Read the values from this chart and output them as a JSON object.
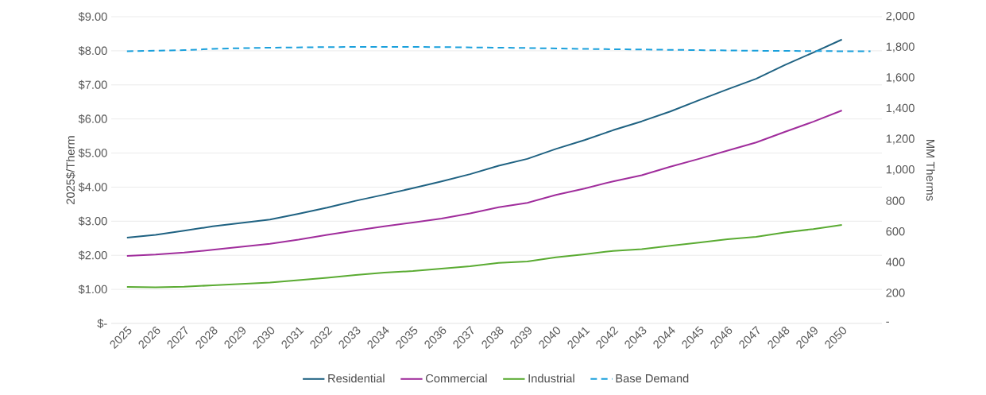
{
  "chart_data": {
    "type": "line",
    "xlabel": null,
    "ylabel": "2025$/Therm",
    "y2label": "MM Therms",
    "categories": [
      "2025",
      "2026",
      "2027",
      "2028",
      "2029",
      "2030",
      "2031",
      "2032",
      "2033",
      "2034",
      "2035",
      "2036",
      "2037",
      "2038",
      "2039",
      "2040",
      "2041",
      "2042",
      "2043",
      "2044",
      "2045",
      "2046",
      "2047",
      "2048",
      "2049",
      "2050",
      null
    ],
    "series": [
      {
        "name": "Residential",
        "color": "#1f6282",
        "values": [
          2.52,
          2.6,
          2.72,
          2.85,
          2.95,
          3.05,
          3.22,
          3.4,
          3.6,
          3.78,
          3.97,
          4.17,
          4.38,
          4.63,
          4.83,
          5.12,
          5.38,
          5.67,
          5.93,
          6.22,
          6.55,
          6.87,
          7.18,
          7.58,
          7.95,
          8.33,
          null
        ]
      },
      {
        "name": "Commercial",
        "color": "#a02d9c",
        "values": [
          1.98,
          2.02,
          2.08,
          2.16,
          2.25,
          2.34,
          2.46,
          2.6,
          2.73,
          2.85,
          2.96,
          3.08,
          3.23,
          3.41,
          3.54,
          3.77,
          3.96,
          4.17,
          4.35,
          4.6,
          4.83,
          5.07,
          5.31,
          5.62,
          5.92,
          6.25,
          null
        ]
      },
      {
        "name": "Industrial",
        "color": "#5aab32",
        "values": [
          1.07,
          1.06,
          1.08,
          1.12,
          1.16,
          1.2,
          1.27,
          1.34,
          1.42,
          1.49,
          1.54,
          1.61,
          1.68,
          1.78,
          1.82,
          1.94,
          2.03,
          2.13,
          2.18,
          2.28,
          2.37,
          2.47,
          2.54,
          2.67,
          2.77,
          2.89,
          null
        ]
      },
      {
        "name": "Base Demand",
        "color": "#1aa0dc",
        "axis": "y2",
        "line_style": "dashed",
        "values": [
          1775,
          1778,
          1782,
          1790,
          1795,
          1798,
          1800,
          1802,
          1803,
          1803,
          1803,
          1802,
          1800,
          1798,
          1796,
          1793,
          1790,
          1788,
          1786,
          1784,
          1782,
          1780,
          1778,
          1777,
          1776,
          1775,
          1775
        ]
      }
    ],
    "ylim": [
      0,
      9
    ],
    "yticks": [
      {
        "value": 0,
        "label": "$-"
      },
      {
        "value": 1,
        "label": "$1.00"
      },
      {
        "value": 2,
        "label": "$2.00"
      },
      {
        "value": 3,
        "label": "$3.00"
      },
      {
        "value": 4,
        "label": "$4.00"
      },
      {
        "value": 5,
        "label": "$5.00"
      },
      {
        "value": 6,
        "label": "$6.00"
      },
      {
        "value": 7,
        "label": "$7.00"
      },
      {
        "value": 8,
        "label": "$8.00"
      },
      {
        "value": 9,
        "label": "$9.00"
      }
    ],
    "y2lim": [
      0,
      2000
    ],
    "y2ticks": [
      {
        "value": 0,
        "label": "-"
      },
      {
        "value": 200,
        "label": "200"
      },
      {
        "value": 400,
        "label": "400"
      },
      {
        "value": 600,
        "label": "600"
      },
      {
        "value": 800,
        "label": "800"
      },
      {
        "value": 1000,
        "label": "1,000"
      },
      {
        "value": 1200,
        "label": "1,200"
      },
      {
        "value": 1400,
        "label": "1,400"
      },
      {
        "value": 1600,
        "label": "1,600"
      },
      {
        "value": 1800,
        "label": "1,800"
      },
      {
        "value": 2000,
        "label": "2,000"
      }
    ],
    "grid": "y",
    "legend": "bottom",
    "line_style": "solid",
    "marker": "none"
  }
}
